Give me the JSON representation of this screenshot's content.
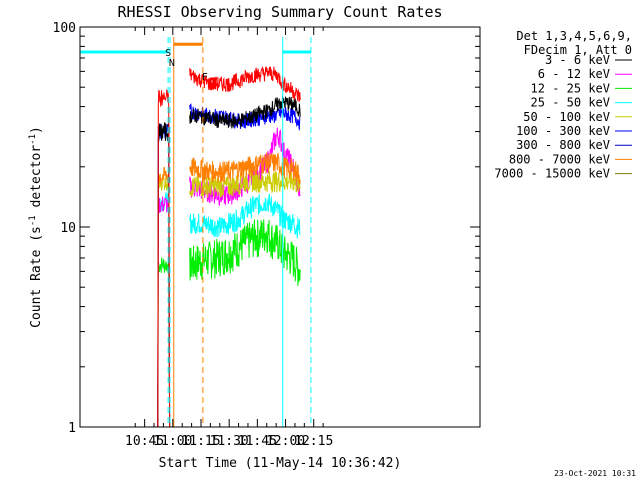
{
  "chart_data": {
    "type": "line",
    "title": "RHESSI Observing Summary Count Rates",
    "xlabel": "Start Time (11-May-14 10:36:42)",
    "ylabel_main": "Count Rate (s",
    "ylabel_sup1": "-1",
    "ylabel_mid": " detector",
    "ylabel_sup2": "-1",
    "ylabel_end": ")",
    "y_scale": "log",
    "ylim": [
      1,
      100
    ],
    "xlim_minutes": [
      10.6,
      223.5
    ],
    "x_ticks": [
      {
        "label": "10:45",
        "m": 45
      },
      {
        "label": "11:00",
        "m": 60
      },
      {
        "label": "11:15",
        "m": 75
      },
      {
        "label": "11:30",
        "m": 90
      },
      {
        "label": "11:45",
        "m": 105
      },
      {
        "label": "12:00",
        "m": 120
      },
      {
        "label": "12:15",
        "m": 135
      }
    ],
    "y_ticks": [
      {
        "label": "1",
        "v": 1
      },
      {
        "label": "10",
        "v": 10
      },
      {
        "label": "100",
        "v": 100
      }
    ],
    "legend_header": [
      "Det 1,3,4,5,6,9,",
      "FDecim 1, Att 0"
    ],
    "legend_position": "right",
    "series": [
      {
        "name": "3 - 6 keV",
        "color": "#000000"
      },
      {
        "name": "6 - 12 keV",
        "color": "#ff00ff"
      },
      {
        "name": "12 - 25 keV",
        "color": "#00ee00"
      },
      {
        "name": "25 - 50 keV",
        "color": "#00ffff"
      },
      {
        "name": "50 - 100 keV",
        "color": "#cccc00"
      },
      {
        "name": "100 - 300 keV",
        "color": "#0000ff"
      },
      {
        "name": "300 - 800 keV",
        "color": "#0000cc"
      },
      {
        "name": "800 - 7000 keV",
        "color": "#ff8000"
      },
      {
        "name": "7000 - 15000 keV",
        "color": "#808000"
      }
    ],
    "profile_times_minutes": [
      69,
      74,
      80,
      85,
      90,
      95,
      99,
      104,
      106,
      110,
      112,
      114,
      116,
      117,
      119,
      124,
      126,
      128
    ],
    "traces": [
      {
        "color": "#00ee00",
        "early_level": 6.5,
        "late": [
          6.5,
          6.8,
          7,
          7.2,
          7.5,
          8,
          8.5,
          9,
          9,
          9.5,
          9,
          8.5,
          8.5,
          8,
          7.5,
          7,
          6.5,
          6
        ]
      },
      {
        "color": "#00ffff",
        "early_level": 13.5,
        "late": [
          10.5,
          10.5,
          10.3,
          10,
          10.5,
          11,
          12,
          13,
          13,
          13.5,
          13,
          12.5,
          12,
          11.5,
          11,
          10.5,
          10,
          10
        ]
      },
      {
        "color": "#ff00ff",
        "early_level": 13,
        "late": [
          16,
          15.5,
          15,
          14.5,
          14.5,
          15.5,
          16.5,
          18,
          19,
          21,
          23,
          27,
          29,
          28,
          24,
          20,
          17,
          14
        ]
      },
      {
        "color": "#cccc00",
        "early_level": 17,
        "late": [
          16,
          16,
          16,
          16,
          16,
          16.5,
          17,
          17,
          17,
          17,
          17,
          17,
          17,
          17,
          17,
          17,
          16.5,
          16
        ]
      },
      {
        "color": "#ff8000",
        "early_level": 18,
        "late": [
          20,
          19.5,
          19,
          19,
          19,
          19.5,
          20,
          20.5,
          21,
          21,
          21,
          21,
          21,
          20.5,
          20,
          19.5,
          19,
          18
        ]
      },
      {
        "color": "#0000ff",
        "early_level": 30,
        "late": [
          38,
          37,
          36,
          36,
          35,
          34,
          34,
          35,
          35,
          36,
          36,
          36,
          37,
          37,
          37,
          36,
          35,
          33
        ]
      },
      {
        "color": "#000000",
        "early_level": 30,
        "late": [
          36,
          36,
          35,
          34,
          34,
          34,
          35,
          36,
          37,
          38,
          39,
          40,
          41,
          42,
          42,
          41,
          40,
          38
        ]
      },
      {
        "color": "#ff0000",
        "early_level": 44,
        "late": [
          58,
          55,
          52,
          52,
          52,
          54,
          56,
          58,
          58,
          59,
          59,
          58,
          57,
          55,
          52,
          48,
          46,
          44
        ]
      }
    ],
    "early_window_minutes": [
      52,
      58
    ],
    "annotations": [
      {
        "text": "S",
        "m": 57.5,
        "v": 75,
        "color": "#ff8000"
      },
      {
        "text": "N",
        "m": 59.5,
        "v": 67,
        "color": "#00ffff"
      },
      {
        "text": "F",
        "m": 77,
        "v": 57,
        "color": "#ff0000"
      }
    ],
    "bars": [
      {
        "color": "#00ffff",
        "m_start": 10.6,
        "m_end": 57.5,
        "v": 75
      },
      {
        "color": "#ff8000",
        "m_start": 60.5,
        "m_end": 76,
        "v": 82
      },
      {
        "color": "#00ffff",
        "m_start": 118.5,
        "m_end": 133.5,
        "v": 75
      },
      {
        "color": "#ff0000",
        "m_start": 80,
        "m_end": 83.5,
        "v": 55
      }
    ],
    "vlines": [
      {
        "color": "#00ffff",
        "m": 10.6,
        "dash": false
      },
      {
        "color": "#00ffff",
        "m": 57.5,
        "dash": true
      },
      {
        "color": "#00ffff",
        "m": 58.5,
        "dash": true
      },
      {
        "color": "#ff8000",
        "m": 60.5,
        "dash": false
      },
      {
        "color": "#ff8000",
        "m": 76,
        "dash": true
      },
      {
        "color": "#00ffff",
        "m": 118.5,
        "dash": false
      },
      {
        "color": "#00ffff",
        "m": 133.5,
        "dash": true
      }
    ],
    "footer": "23-Oct-2021 10:31"
  }
}
